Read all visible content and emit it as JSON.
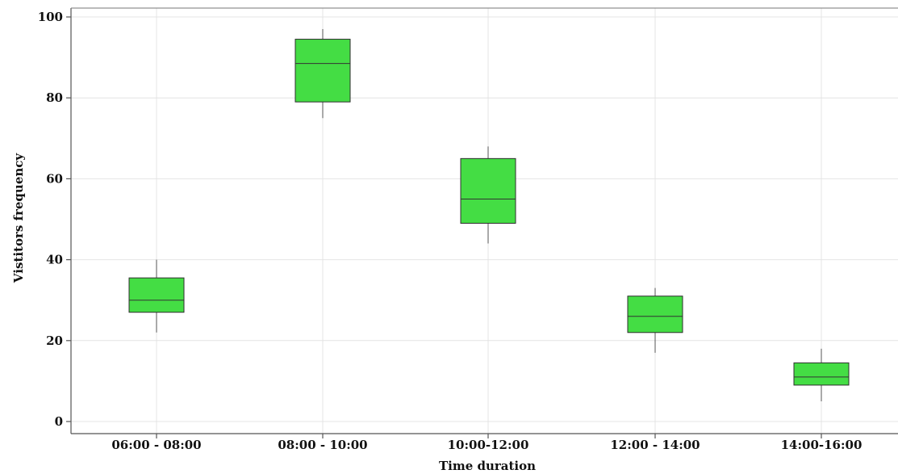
{
  "chart_data": {
    "type": "boxplot",
    "title": "",
    "xlabel": "Time duration",
    "ylabel": "Vistitors frequency",
    "ylim": [
      0,
      100
    ],
    "yticks": [
      0,
      20,
      40,
      60,
      80,
      100
    ],
    "grid": true,
    "legend": "none",
    "box_color": "#44dd44",
    "box_stroke": "#2e2e2e",
    "categories": [
      "06:00 - 08:00",
      "08:00 - 10:00",
      "10:00-12:00",
      "12:00 - 14:00",
      "14:00-16:00"
    ],
    "boxes": [
      {
        "min": 22,
        "q1": 27,
        "median": 30,
        "q3": 35.5,
        "max": 40
      },
      {
        "min": 75,
        "q1": 79,
        "median": 88.5,
        "q3": 94.5,
        "max": 97
      },
      {
        "min": 44,
        "q1": 49,
        "median": 55,
        "q3": 65,
        "max": 68
      },
      {
        "min": 17,
        "q1": 22,
        "median": 26,
        "q3": 31,
        "max": 33
      },
      {
        "min": 5,
        "q1": 9,
        "median": 11,
        "q3": 14.5,
        "max": 18
      }
    ]
  }
}
